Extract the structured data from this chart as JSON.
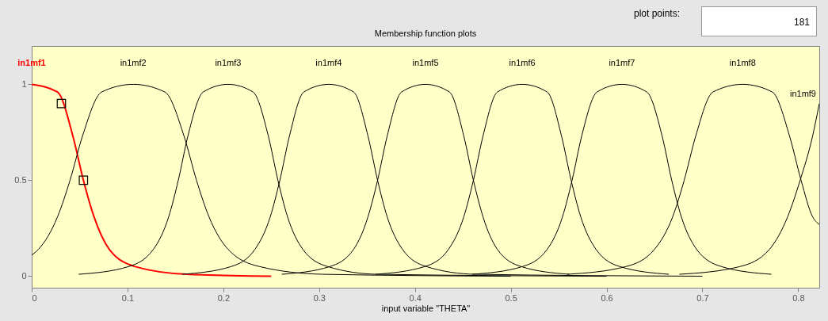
{
  "chart_data": {
    "type": "line",
    "title": "Membership function plots",
    "xlabel": "input variable \"THETA\"",
    "xlim": [
      0,
      0.822
    ],
    "ylim": [
      -0.06,
      1.2
    ],
    "xticks": [
      0,
      0.1,
      0.2,
      0.3,
      0.4,
      0.5,
      0.6,
      0.7,
      0.8
    ],
    "yticks": [
      0,
      0.5,
      1
    ],
    "annotations": [
      "plot points:",
      "181"
    ],
    "series": [
      {
        "name": "in1mf1",
        "color": "#ff0000",
        "x": [
          0,
          0.027,
          0.043,
          0.054,
          0.065,
          0.081,
          0.108,
          0.162,
          0.25
        ],
        "values": [
          1,
          0.96,
          0.73,
          0.5,
          0.31,
          0.14,
          0.05,
          0.01,
          0
        ]
      },
      {
        "name": "in1mf2",
        "color": "#000000",
        "x": [
          0,
          0.007,
          0.027,
          0.04,
          0.053,
          0.073,
          0.106,
          0.139,
          0.159,
          0.172,
          0.185,
          0.205,
          0.238,
          0.304,
          0.5
        ],
        "values": [
          0.11,
          0.14,
          0.31,
          0.5,
          0.73,
          0.96,
          1,
          0.96,
          0.73,
          0.5,
          0.31,
          0.14,
          0.05,
          0.01,
          0
        ]
      },
      {
        "name": "in1mf3",
        "color": "#000000",
        "x": [
          0.049,
          0.101,
          0.127,
          0.143,
          0.153,
          0.163,
          0.179,
          0.205,
          0.231,
          0.247,
          0.257,
          0.267,
          0.283,
          0.309,
          0.361,
          0.6
        ],
        "values": [
          0.01,
          0.05,
          0.14,
          0.31,
          0.5,
          0.73,
          0.96,
          1,
          0.96,
          0.73,
          0.5,
          0.31,
          0.14,
          0.05,
          0.01,
          0
        ]
      },
      {
        "name": "in1mf4",
        "color": "#000000",
        "x": [
          0.157,
          0.208,
          0.233,
          0.249,
          0.259,
          0.269,
          0.284,
          0.31,
          0.336,
          0.351,
          0.361,
          0.371,
          0.387,
          0.412,
          0.463,
          0.7
        ],
        "values": [
          0.01,
          0.05,
          0.14,
          0.31,
          0.5,
          0.73,
          0.96,
          1,
          0.96,
          0.73,
          0.5,
          0.31,
          0.14,
          0.05,
          0.01,
          0
        ]
      },
      {
        "name": "in1mf5",
        "color": "#000000",
        "x": [
          0.261,
          0.311,
          0.336,
          0.351,
          0.361,
          0.371,
          0.386,
          0.411,
          0.436,
          0.451,
          0.461,
          0.471,
          0.486,
          0.511,
          0.561
        ],
        "values": [
          0.01,
          0.05,
          0.14,
          0.31,
          0.5,
          0.73,
          0.96,
          1,
          0.96,
          0.73,
          0.5,
          0.31,
          0.14,
          0.05,
          0.01
        ]
      },
      {
        "name": "in1mf6",
        "color": "#000000",
        "x": [
          0.359,
          0.41,
          0.435,
          0.451,
          0.461,
          0.471,
          0.486,
          0.512,
          0.538,
          0.553,
          0.563,
          0.573,
          0.589,
          0.614,
          0.665
        ],
        "values": [
          0.01,
          0.05,
          0.14,
          0.31,
          0.5,
          0.73,
          0.96,
          1,
          0.96,
          0.73,
          0.5,
          0.31,
          0.14,
          0.05,
          0.01
        ]
      },
      {
        "name": "in1mf7",
        "color": "#000000",
        "x": [
          0.46,
          0.512,
          0.538,
          0.554,
          0.564,
          0.574,
          0.59,
          0.616,
          0.642,
          0.658,
          0.668,
          0.678,
          0.694,
          0.72,
          0.772
        ],
        "values": [
          0.01,
          0.05,
          0.14,
          0.31,
          0.5,
          0.73,
          0.96,
          1,
          0.96,
          0.73,
          0.5,
          0.31,
          0.14,
          0.05,
          0.01
        ]
      },
      {
        "name": "in1mf8",
        "color": "#000000",
        "x": [
          0.559,
          0.62,
          0.65,
          0.669,
          0.681,
          0.693,
          0.711,
          0.742,
          0.773,
          0.791,
          0.803,
          0.815,
          0.822
        ],
        "values": [
          0.01,
          0.05,
          0.14,
          0.31,
          0.5,
          0.73,
          0.96,
          1,
          0.96,
          0.73,
          0.5,
          0.31,
          0.27
        ]
      },
      {
        "name": "in1mf9",
        "color": "#000000",
        "x": [
          0.676,
          0.739,
          0.77,
          0.789,
          0.802,
          0.815,
          0.822
        ],
        "values": [
          0.01,
          0.05,
          0.14,
          0.31,
          0.5,
          0.73,
          0.9
        ]
      },
      {
        "type": "scatter",
        "marker": "square",
        "color": "#000000",
        "x": [
          0.031,
          0.054
        ],
        "values": [
          0.9,
          0.5
        ]
      }
    ]
  }
}
